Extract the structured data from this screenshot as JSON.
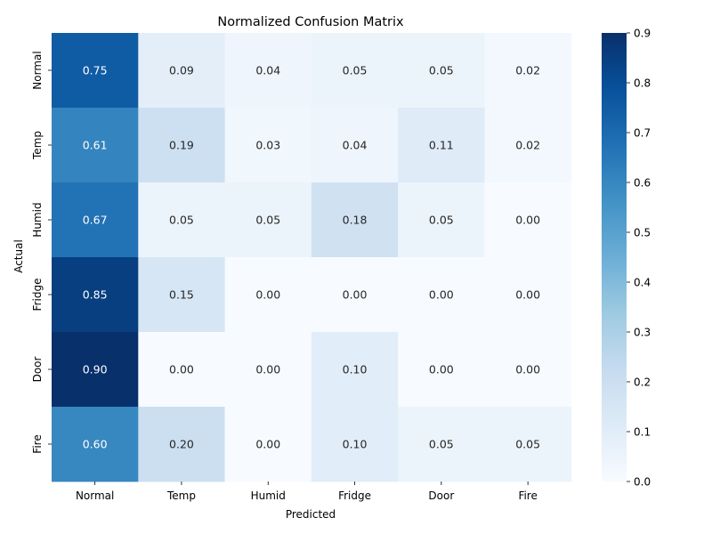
{
  "chart_data": {
    "type": "heatmap",
    "title": "Normalized Confusion Matrix",
    "xlabel": "Predicted",
    "ylabel": "Actual",
    "x_categories": [
      "Normal",
      "Temp",
      "Humid",
      "Fridge",
      "Door",
      "Fire"
    ],
    "y_categories": [
      "Normal",
      "Temp",
      "Humid",
      "Fridge",
      "Door",
      "Fire"
    ],
    "values": [
      [
        0.75,
        0.09,
        0.04,
        0.05,
        0.05,
        0.02
      ],
      [
        0.61,
        0.19,
        0.03,
        0.04,
        0.11,
        0.02
      ],
      [
        0.67,
        0.05,
        0.05,
        0.18,
        0.05,
        0.0
      ],
      [
        0.85,
        0.15,
        0.0,
        0.0,
        0.0,
        0.0
      ],
      [
        0.9,
        0.0,
        0.0,
        0.1,
        0.0,
        0.0
      ],
      [
        0.6,
        0.2,
        0.0,
        0.1,
        0.05,
        0.05
      ]
    ],
    "value_format": "0.00",
    "colorbar": {
      "range": [
        0,
        0.9
      ],
      "ticks": [
        "0.0",
        "0.1",
        "0.2",
        "0.3",
        "0.4",
        "0.5",
        "0.6",
        "0.7",
        "0.8",
        "0.9"
      ],
      "colormap": "Blues"
    }
  }
}
